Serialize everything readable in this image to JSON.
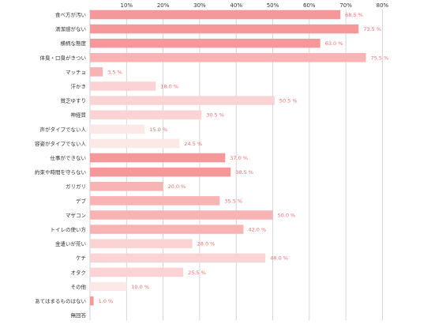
{
  "chart_data": {
    "type": "bar",
    "orientation": "horizontal",
    "xlim": [
      0,
      80
    ],
    "x_ticks": [
      "10%",
      "20%",
      "30%",
      "40%",
      "50%",
      "60%",
      "70%",
      "80%"
    ],
    "grid": true,
    "categories": [
      "食べ方が汚い",
      "清潔感がない",
      "横柄な態度",
      "体臭・口臭がきつい",
      "マッチョ",
      "汗かき",
      "貧乏ゆすり",
      "神経質",
      "声がタイプでない人",
      "容姿がタイプでない人",
      "仕事ができない",
      "約束や時間を守らない",
      "ガリガリ",
      "デブ",
      "マザコン",
      "トイレの使い方",
      "金遣いが荒い",
      "ケチ",
      "オタク",
      "その他",
      "あてはまるものはない",
      "無回答"
    ],
    "values": [
      68.5,
      73.5,
      63.0,
      75.5,
      3.5,
      18.0,
      50.5,
      30.5,
      15.0,
      24.5,
      37.0,
      38.5,
      20.0,
      35.5,
      50.0,
      42.0,
      28.0,
      48.0,
      25.5,
      10.0,
      1.0,
      null
    ],
    "value_labels": [
      "68.5 %",
      "73.5 %",
      "63.0 %",
      "75.5 %",
      "3.5 %",
      "18.0 %",
      "50.5 %",
      "30.5 %",
      "15.0 %",
      "24.5 %",
      "37.0 %",
      "38.5 %",
      "20.0 %",
      "35.5 %",
      "50.0 %",
      "42.0 %",
      "28.0 %",
      "48.0 %",
      "25.5 %",
      "10.0 %",
      "1.0 %",
      ""
    ],
    "colors": {
      "strong": "#f4989a",
      "medium": "#f8b4b5",
      "light": "#fbd3d4",
      "pale": "#fde8e8",
      "label": "#f07070",
      "grid": "#cccccc"
    },
    "bar_shades": [
      "strong",
      "strong",
      "strong",
      "medium",
      "medium",
      "light",
      "light",
      "light",
      "pale",
      "pale",
      "strong",
      "strong",
      "medium",
      "medium",
      "medium",
      "medium",
      "light",
      "light",
      "light",
      "pale",
      "strong",
      "pale"
    ]
  }
}
